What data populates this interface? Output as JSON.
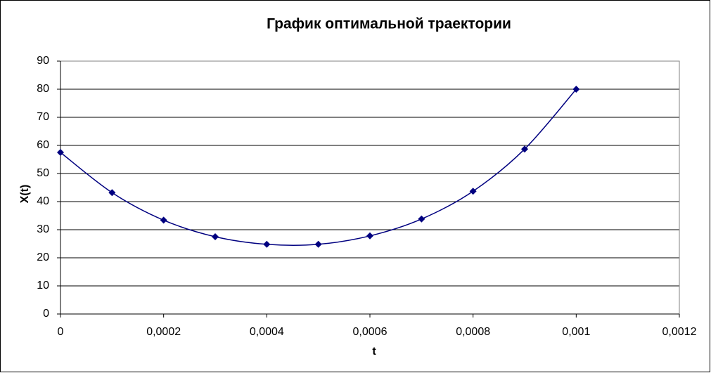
{
  "chart_data": {
    "type": "scatter-line",
    "title": "График оптимальной траектории",
    "x_label": "t",
    "y_label": "X(t)",
    "x": [
      0,
      0.0001,
      0.0002,
      0.0003,
      0.0004,
      0.0005,
      0.0006,
      0.0007,
      0.0008,
      0.0009,
      0.001
    ],
    "series": [
      {
        "color": "#000080",
        "values": [
          57.5,
          43.2,
          33.4,
          27.5,
          24.8,
          24.8,
          27.8,
          33.8,
          43.7,
          58.7,
          80
        ]
      }
    ],
    "xlim": [
      0,
      0.0012
    ],
    "xticks": [
      0,
      {
        "value": 0.0002,
        "label": "0,0002"
      },
      {
        "value": 0.0004,
        "label": "0,0004"
      },
      {
        "value": 0.0006,
        "label": "0,0006"
      },
      {
        "value": 0.0008,
        "label": "0,0008"
      },
      {
        "value": 0.001,
        "label": "0,001"
      },
      {
        "value": 0.0012,
        "label": "0,0012"
      }
    ],
    "ylim": [
      0,
      90
    ],
    "yticks": [
      0,
      10,
      20,
      30,
      40,
      50,
      60,
      70,
      80,
      90
    ],
    "grid": true,
    "smooth": true
  }
}
